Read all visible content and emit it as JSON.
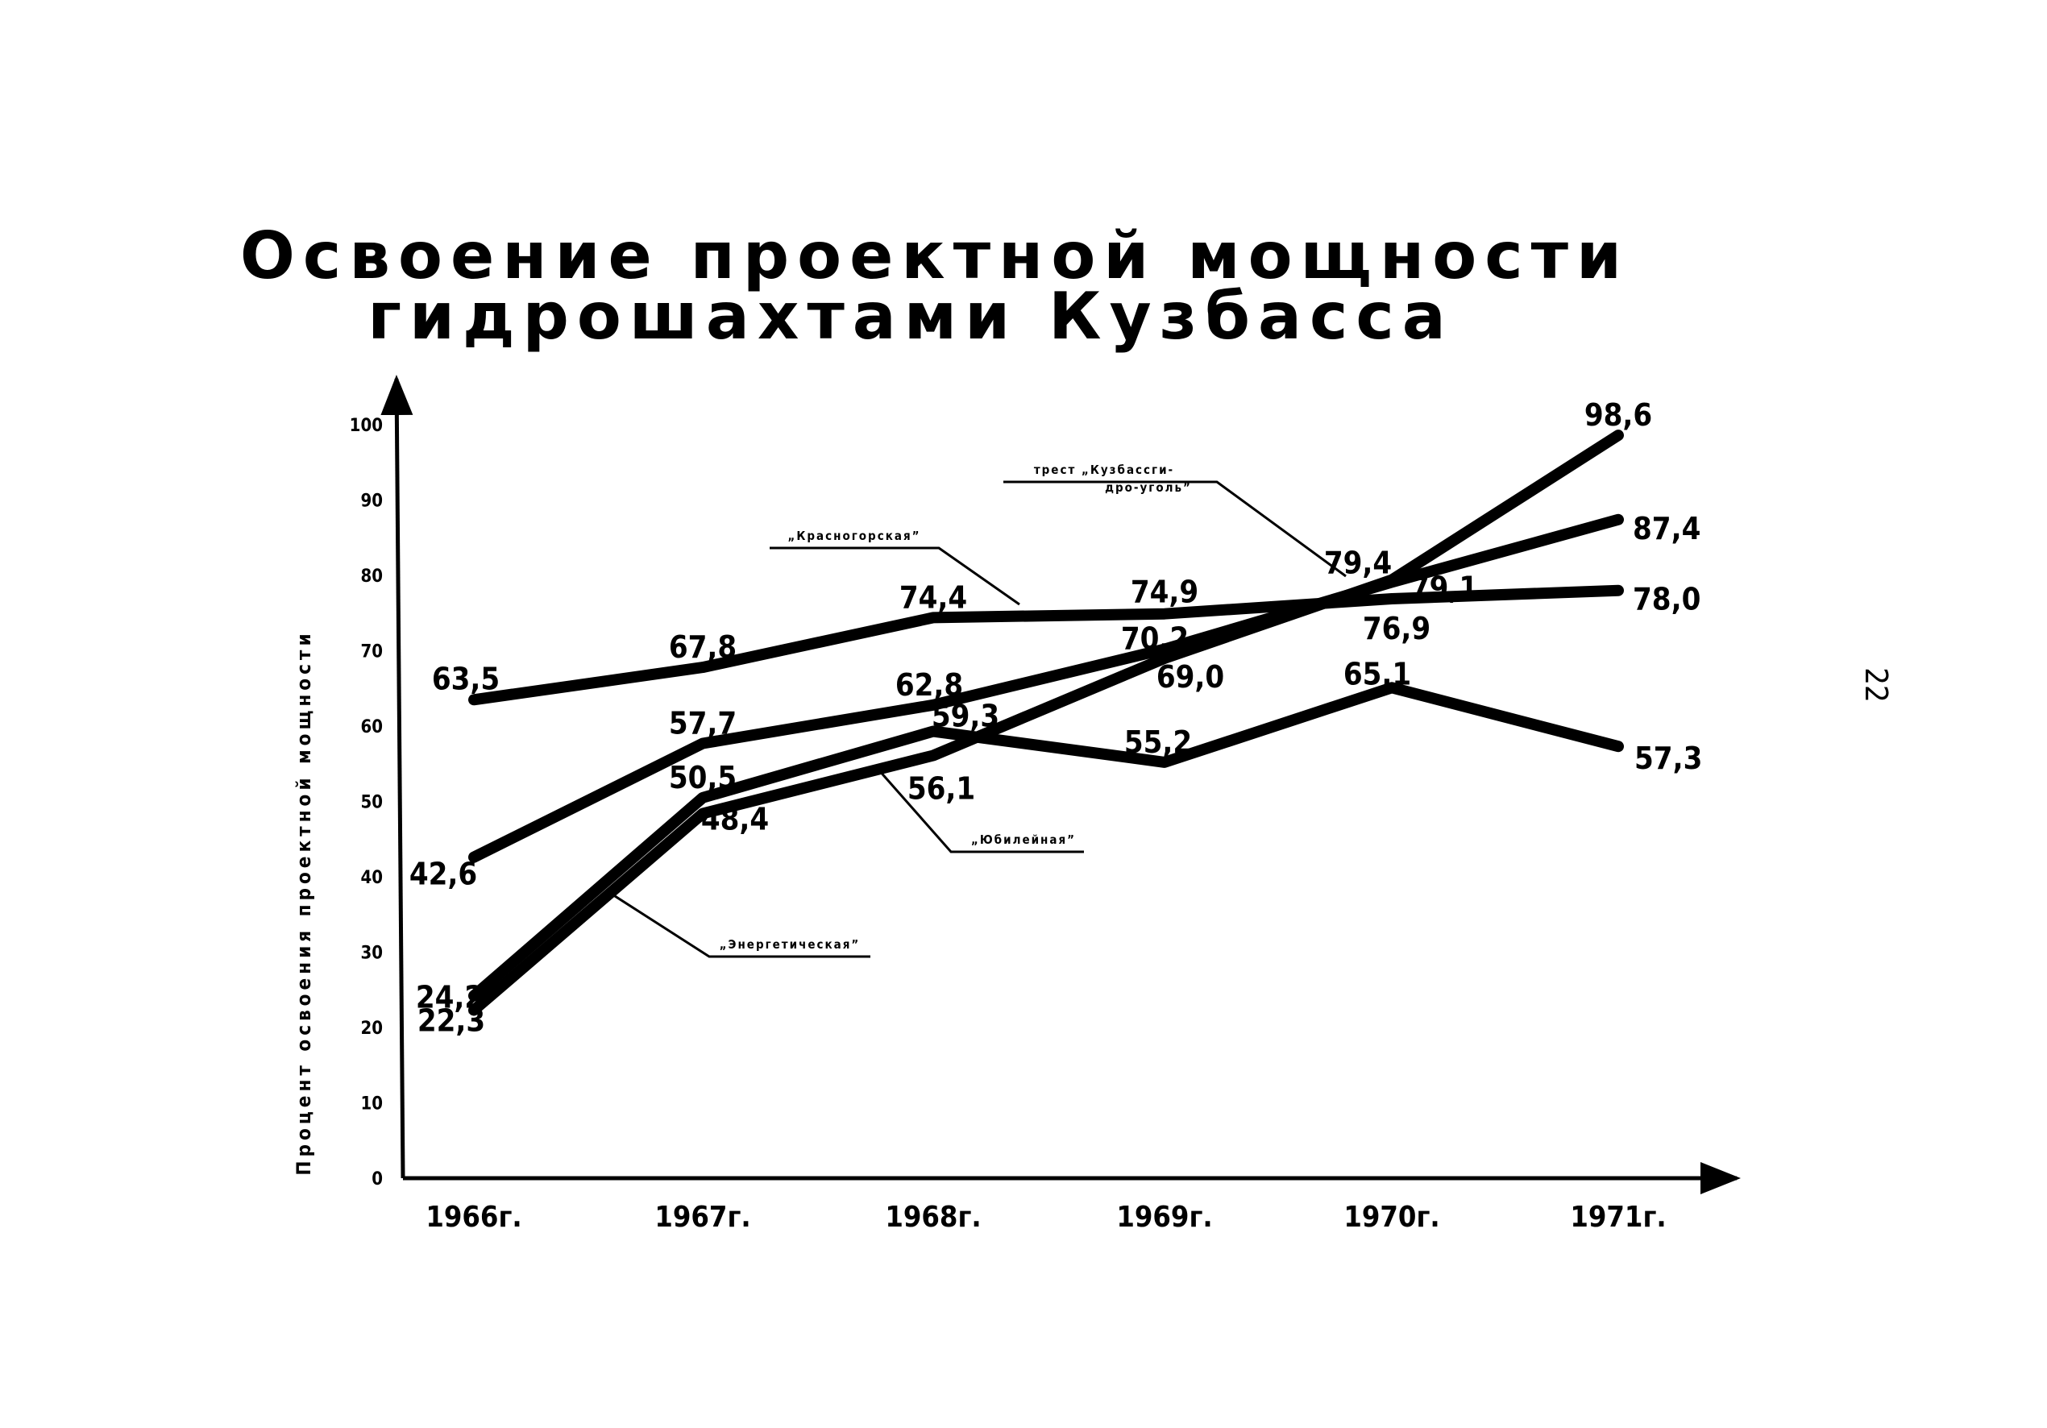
{
  "page_number": "22",
  "chart_data": {
    "type": "line",
    "title": [
      "Освоение проектной мощности",
      "гидрошахтами Кузбасса"
    ],
    "ylabel": "Процент освоения проектной мощности",
    "xlabel": "",
    "ylim": [
      0,
      100
    ],
    "yticks": [
      0,
      10,
      20,
      30,
      40,
      50,
      60,
      70,
      80,
      90,
      100
    ],
    "ytick_labels": [
      "0",
      "10",
      "20",
      "30",
      "40",
      "50",
      "60",
      "70",
      "80",
      "90",
      "100"
    ],
    "categories": [
      "1966г.",
      "1967г.",
      "1968г.",
      "1969г.",
      "1970г.",
      "1971г."
    ],
    "grid": false,
    "legend": "none (series labelled by leader-line callouts)",
    "series": [
      {
        "name": "„Красногорская”",
        "values": [
          63.5,
          67.8,
          74.4,
          74.9,
          76.9,
          78.0
        ],
        "labels": [
          "63,5",
          "67,8",
          "74,4",
          "74,9",
          "76,9",
          "78,0"
        ]
      },
      {
        "name": "трест „Кузбассгидро-уголь”",
        "values": [
          42.6,
          57.7,
          62.8,
          70.2,
          79.1,
          87.4
        ],
        "labels": [
          "42,6",
          "57,7",
          "62,8",
          "70,2",
          "79,1",
          "87,4"
        ]
      },
      {
        "name": "„Юбилейная”",
        "values": [
          24.2,
          50.5,
          59.3,
          55.2,
          65.1,
          57.3
        ],
        "labels": [
          "24,2",
          "50,5",
          "59,3",
          "55,2",
          "65,1",
          "57,3"
        ]
      },
      {
        "name": "„Энергетическая”",
        "values": [
          22.3,
          48.4,
          56.1,
          69.0,
          79.4,
          98.6
        ],
        "labels": [
          "22,3",
          "48,4",
          "56,1",
          "69,0",
          "79,4",
          "98,6"
        ]
      }
    ],
    "colors": {
      "line": "#000000",
      "background": "#ffffff"
    }
  }
}
